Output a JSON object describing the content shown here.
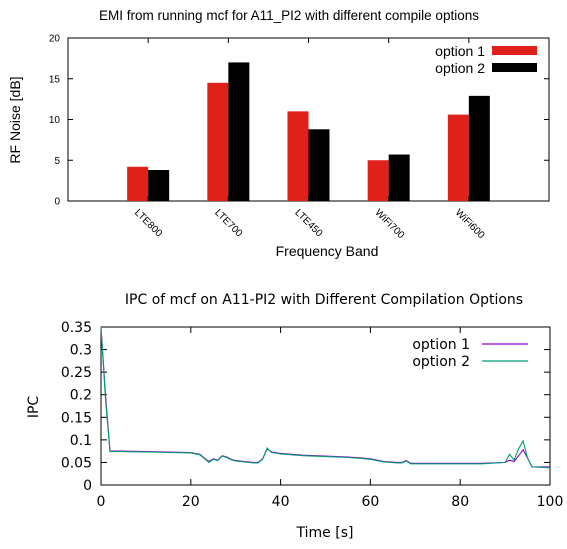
{
  "chart_data": [
    {
      "type": "bar",
      "title": "EMI from running mcf for A11_PI2 with different compile options",
      "xlabel": "Frequency Band",
      "ylabel": "RF Noise [dB]",
      "ylim": [
        0,
        20
      ],
      "yticks": [
        0,
        5,
        10,
        15,
        20
      ],
      "grid": false,
      "legend_position": "top-right",
      "categories": [
        "LTE800",
        "LTE700",
        "LTE450",
        "WiFi700",
        "WiFi600"
      ],
      "series": [
        {
          "name": "option 1",
          "color": "#e0201b",
          "values": [
            4.2,
            14.5,
            11.0,
            5.0,
            10.6
          ]
        },
        {
          "name": "option 2",
          "color": "#000000",
          "values": [
            3.8,
            17.0,
            8.8,
            5.7,
            12.9
          ]
        }
      ]
    },
    {
      "type": "line",
      "title": "IPC of mcf on A11-PI2 with Different Compilation Options",
      "xlabel": "Time [s]",
      "ylabel": "IPC",
      "xlim": [
        0,
        100
      ],
      "ylim": [
        0,
        0.35
      ],
      "xticks": [
        0,
        20,
        40,
        60,
        80,
        100
      ],
      "yticks": [
        0,
        0.05,
        0.1,
        0.15,
        0.2,
        0.25,
        0.3,
        0.35
      ],
      "grid": false,
      "legend_position": "top-right",
      "series": [
        {
          "name": "option 1",
          "color": "#9400d3",
          "points": [
            [
              0,
              0.35
            ],
            [
              1,
              0.2
            ],
            [
              2,
              0.075
            ],
            [
              5,
              0.075
            ],
            [
              10,
              0.074
            ],
            [
              15,
              0.073
            ],
            [
              20,
              0.072
            ],
            [
              22,
              0.068
            ],
            [
              23,
              0.06
            ],
            [
              24,
              0.052
            ],
            [
              25,
              0.058
            ],
            [
              26,
              0.055
            ],
            [
              27,
              0.065
            ],
            [
              28,
              0.062
            ],
            [
              29,
              0.057
            ],
            [
              30,
              0.054
            ],
            [
              32,
              0.052
            ],
            [
              34,
              0.05
            ],
            [
              35,
              0.05
            ],
            [
              36,
              0.058
            ],
            [
              37,
              0.08
            ],
            [
              38,
              0.073
            ],
            [
              40,
              0.07
            ],
            [
              45,
              0.066
            ],
            [
              50,
              0.064
            ],
            [
              55,
              0.062
            ],
            [
              58,
              0.06
            ],
            [
              60,
              0.058
            ],
            [
              63,
              0.052
            ],
            [
              66,
              0.05
            ],
            [
              67,
              0.05
            ],
            [
              68,
              0.054
            ],
            [
              69,
              0.048
            ],
            [
              72,
              0.048
            ],
            [
              80,
              0.048
            ],
            [
              85,
              0.048
            ],
            [
              90,
              0.05
            ],
            [
              91,
              0.055
            ],
            [
              92,
              0.052
            ],
            [
              93,
              0.065
            ],
            [
              94,
              0.078
            ],
            [
              95,
              0.06
            ],
            [
              96,
              0.04
            ],
            [
              100,
              0.04
            ]
          ]
        },
        {
          "name": "option 2",
          "color": "#009e73",
          "points": [
            [
              0,
              0.35
            ],
            [
              1,
              0.19
            ],
            [
              2,
              0.074
            ],
            [
              5,
              0.074
            ],
            [
              10,
              0.073
            ],
            [
              15,
              0.072
            ],
            [
              20,
              0.071
            ],
            [
              22,
              0.067
            ],
            [
              23,
              0.059
            ],
            [
              24,
              0.05
            ],
            [
              25,
              0.057
            ],
            [
              26,
              0.054
            ],
            [
              27,
              0.064
            ],
            [
              28,
              0.061
            ],
            [
              29,
              0.056
            ],
            [
              30,
              0.053
            ],
            [
              32,
              0.051
            ],
            [
              34,
              0.049
            ],
            [
              35,
              0.049
            ],
            [
              36,
              0.057
            ],
            [
              37,
              0.082
            ],
            [
              38,
              0.072
            ],
            [
              40,
              0.069
            ],
            [
              45,
              0.065
            ],
            [
              50,
              0.063
            ],
            [
              55,
              0.061
            ],
            [
              58,
              0.059
            ],
            [
              60,
              0.057
            ],
            [
              63,
              0.051
            ],
            [
              66,
              0.049
            ],
            [
              67,
              0.049
            ],
            [
              68,
              0.053
            ],
            [
              69,
              0.047
            ],
            [
              72,
              0.047
            ],
            [
              80,
              0.047
            ],
            [
              85,
              0.047
            ],
            [
              90,
              0.05
            ],
            [
              91,
              0.068
            ],
            [
              92,
              0.055
            ],
            [
              93,
              0.08
            ],
            [
              94,
              0.098
            ],
            [
              95,
              0.06
            ],
            [
              96,
              0.04
            ],
            [
              100,
              0.038
            ]
          ]
        }
      ]
    }
  ]
}
